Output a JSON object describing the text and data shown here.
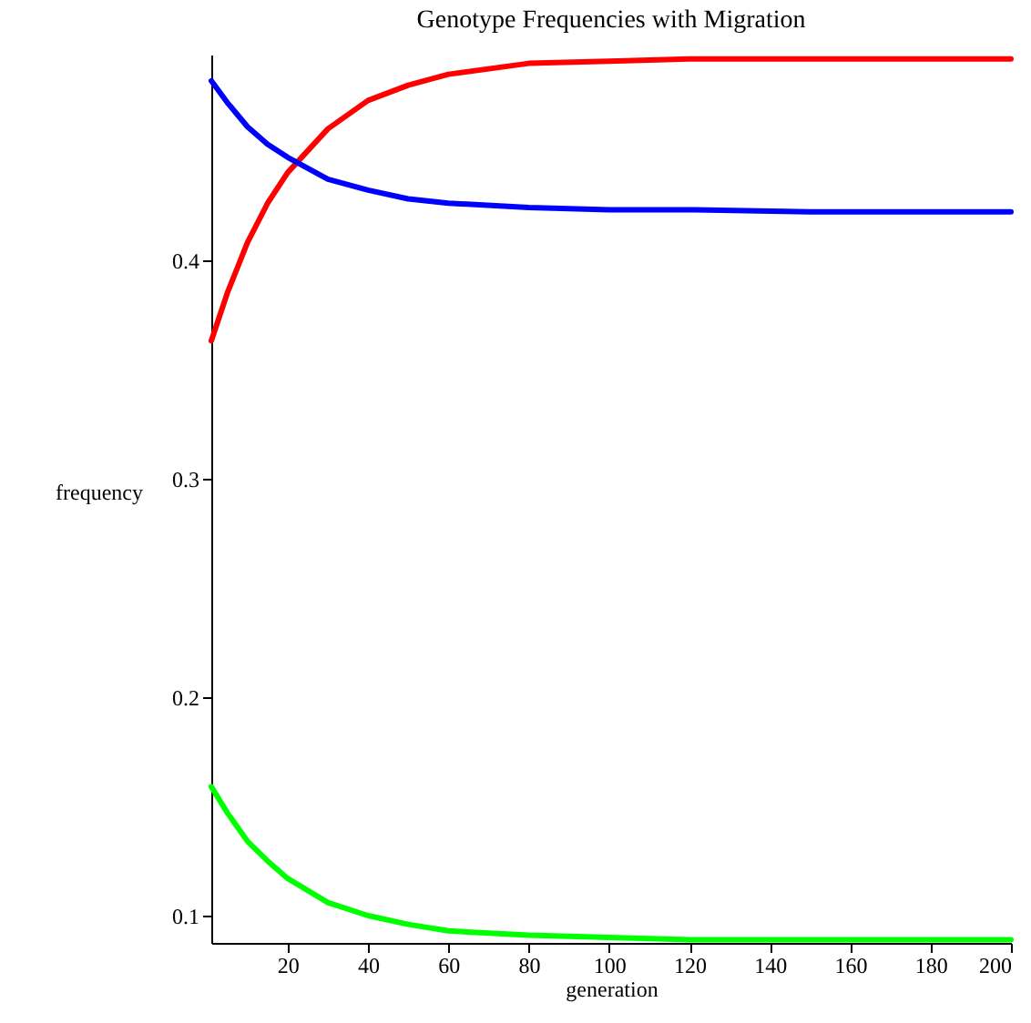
{
  "chart_data": {
    "type": "line",
    "title": "Genotype Frequencies with Migration",
    "xlabel": "generation",
    "ylabel": "frequency",
    "x": [
      1,
      5,
      10,
      15,
      20,
      30,
      40,
      50,
      60,
      80,
      100,
      120,
      150,
      200
    ],
    "series": [
      {
        "color": "#ff0000",
        "values": [
          0.363,
          0.385,
          0.408,
          0.426,
          0.44,
          0.46,
          0.473,
          0.48,
          0.485,
          0.49,
          0.491,
          0.492,
          0.492,
          0.492
        ]
      },
      {
        "color": "#0000ff",
        "values": [
          0.482,
          0.472,
          0.461,
          0.453,
          0.447,
          0.437,
          0.432,
          0.428,
          0.426,
          0.424,
          0.423,
          0.423,
          0.422,
          0.422
        ]
      },
      {
        "color": "#00ff00",
        "values": [
          0.159,
          0.147,
          0.134,
          0.125,
          0.117,
          0.106,
          0.1,
          0.096,
          0.093,
          0.091,
          0.09,
          0.089,
          0.089,
          0.089
        ]
      }
    ],
    "xlim": [
      1,
      200
    ],
    "xticks": [
      20,
      40,
      60,
      80,
      100,
      120,
      140,
      160,
      180,
      200
    ],
    "ylim": [
      0.0875,
      0.494
    ],
    "yticks": [
      0.1,
      0.2,
      0.3,
      0.4
    ],
    "grid": false,
    "legend": false,
    "marker": "none",
    "line_style": "solid"
  }
}
